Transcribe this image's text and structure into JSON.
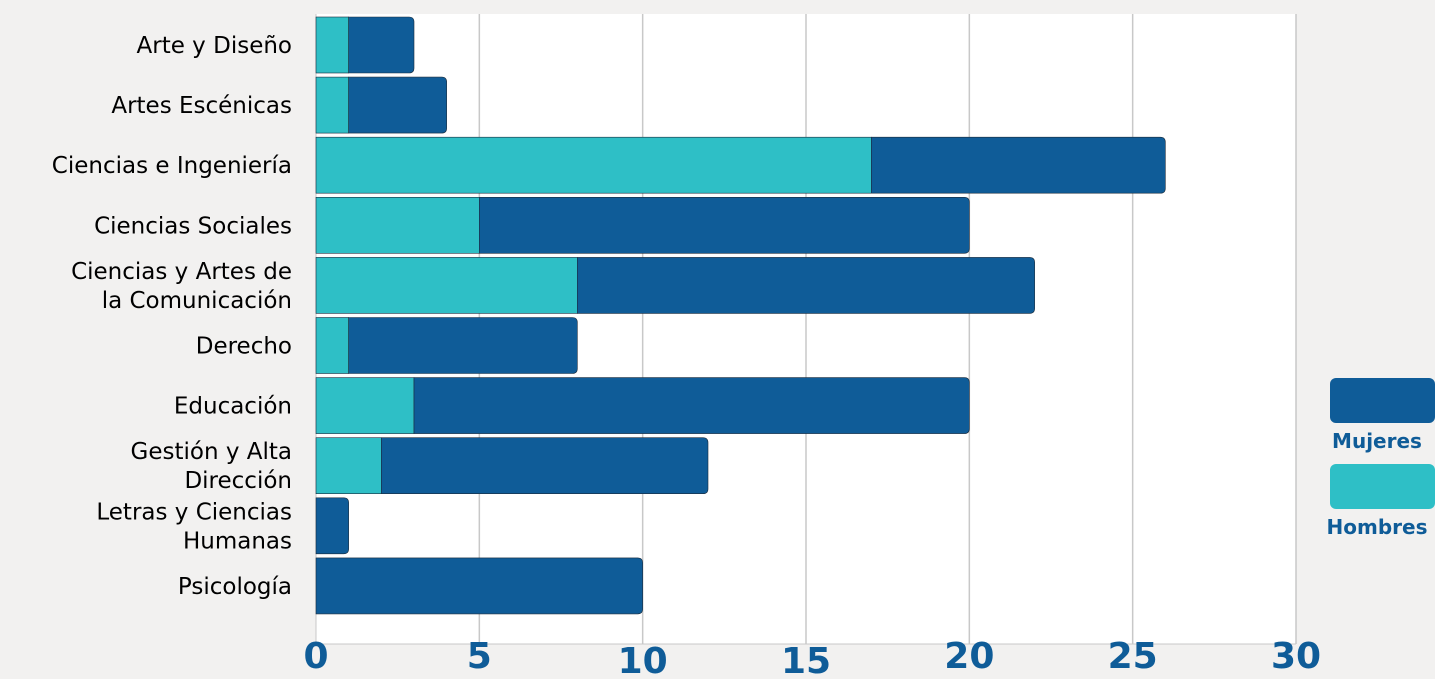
{
  "chart_data": {
    "type": "bar",
    "orientation": "horizontal",
    "stacked": true,
    "title": "",
    "xlabel": "",
    "ylabel": "",
    "xlim": [
      0,
      30
    ],
    "x_ticks": [
      0,
      5,
      10,
      15,
      20,
      25,
      30
    ],
    "grid": true,
    "legend_position": "right",
    "categories": [
      "Arte y Diseño",
      "Artes Escénicas",
      "Ciencias e Ingeniería",
      "Ciencias Sociales",
      "Ciencias y Artes de la Comunicación",
      "Derecho",
      "Educación",
      "Gestión y Alta Dirección",
      "Letras y Ciencias Humanas",
      "Psicología"
    ],
    "category_lines": [
      [
        "Arte y Diseño"
      ],
      [
        "Artes Escénicas"
      ],
      [
        "Ciencias e Ingeniería"
      ],
      [
        "Ciencias Sociales"
      ],
      [
        "Ciencias y Artes de",
        "la Comunicación"
      ],
      [
        "Derecho"
      ],
      [
        "Educación"
      ],
      [
        "Gestión y Alta",
        "Dirección"
      ],
      [
        "Letras y Ciencias",
        "Humanas"
      ],
      [
        "Psicología"
      ]
    ],
    "series": [
      {
        "name": "Hombres",
        "color": "#2ebfc6",
        "values": [
          1,
          1,
          17,
          5,
          8,
          1,
          3,
          2,
          0,
          0
        ]
      },
      {
        "name": "Mujeres",
        "color": "#0f5c98",
        "values": [
          2,
          3,
          9,
          15,
          14,
          7,
          17,
          10,
          1,
          10
        ]
      }
    ],
    "legend_order": [
      "Mujeres",
      "Hombres"
    ],
    "colors": {
      "background": "#f2f1f0",
      "plot_background": "#ffffff",
      "grid": "#c8c8c8",
      "tick_text": "#0f5c98",
      "category_text": "#000000"
    }
  }
}
